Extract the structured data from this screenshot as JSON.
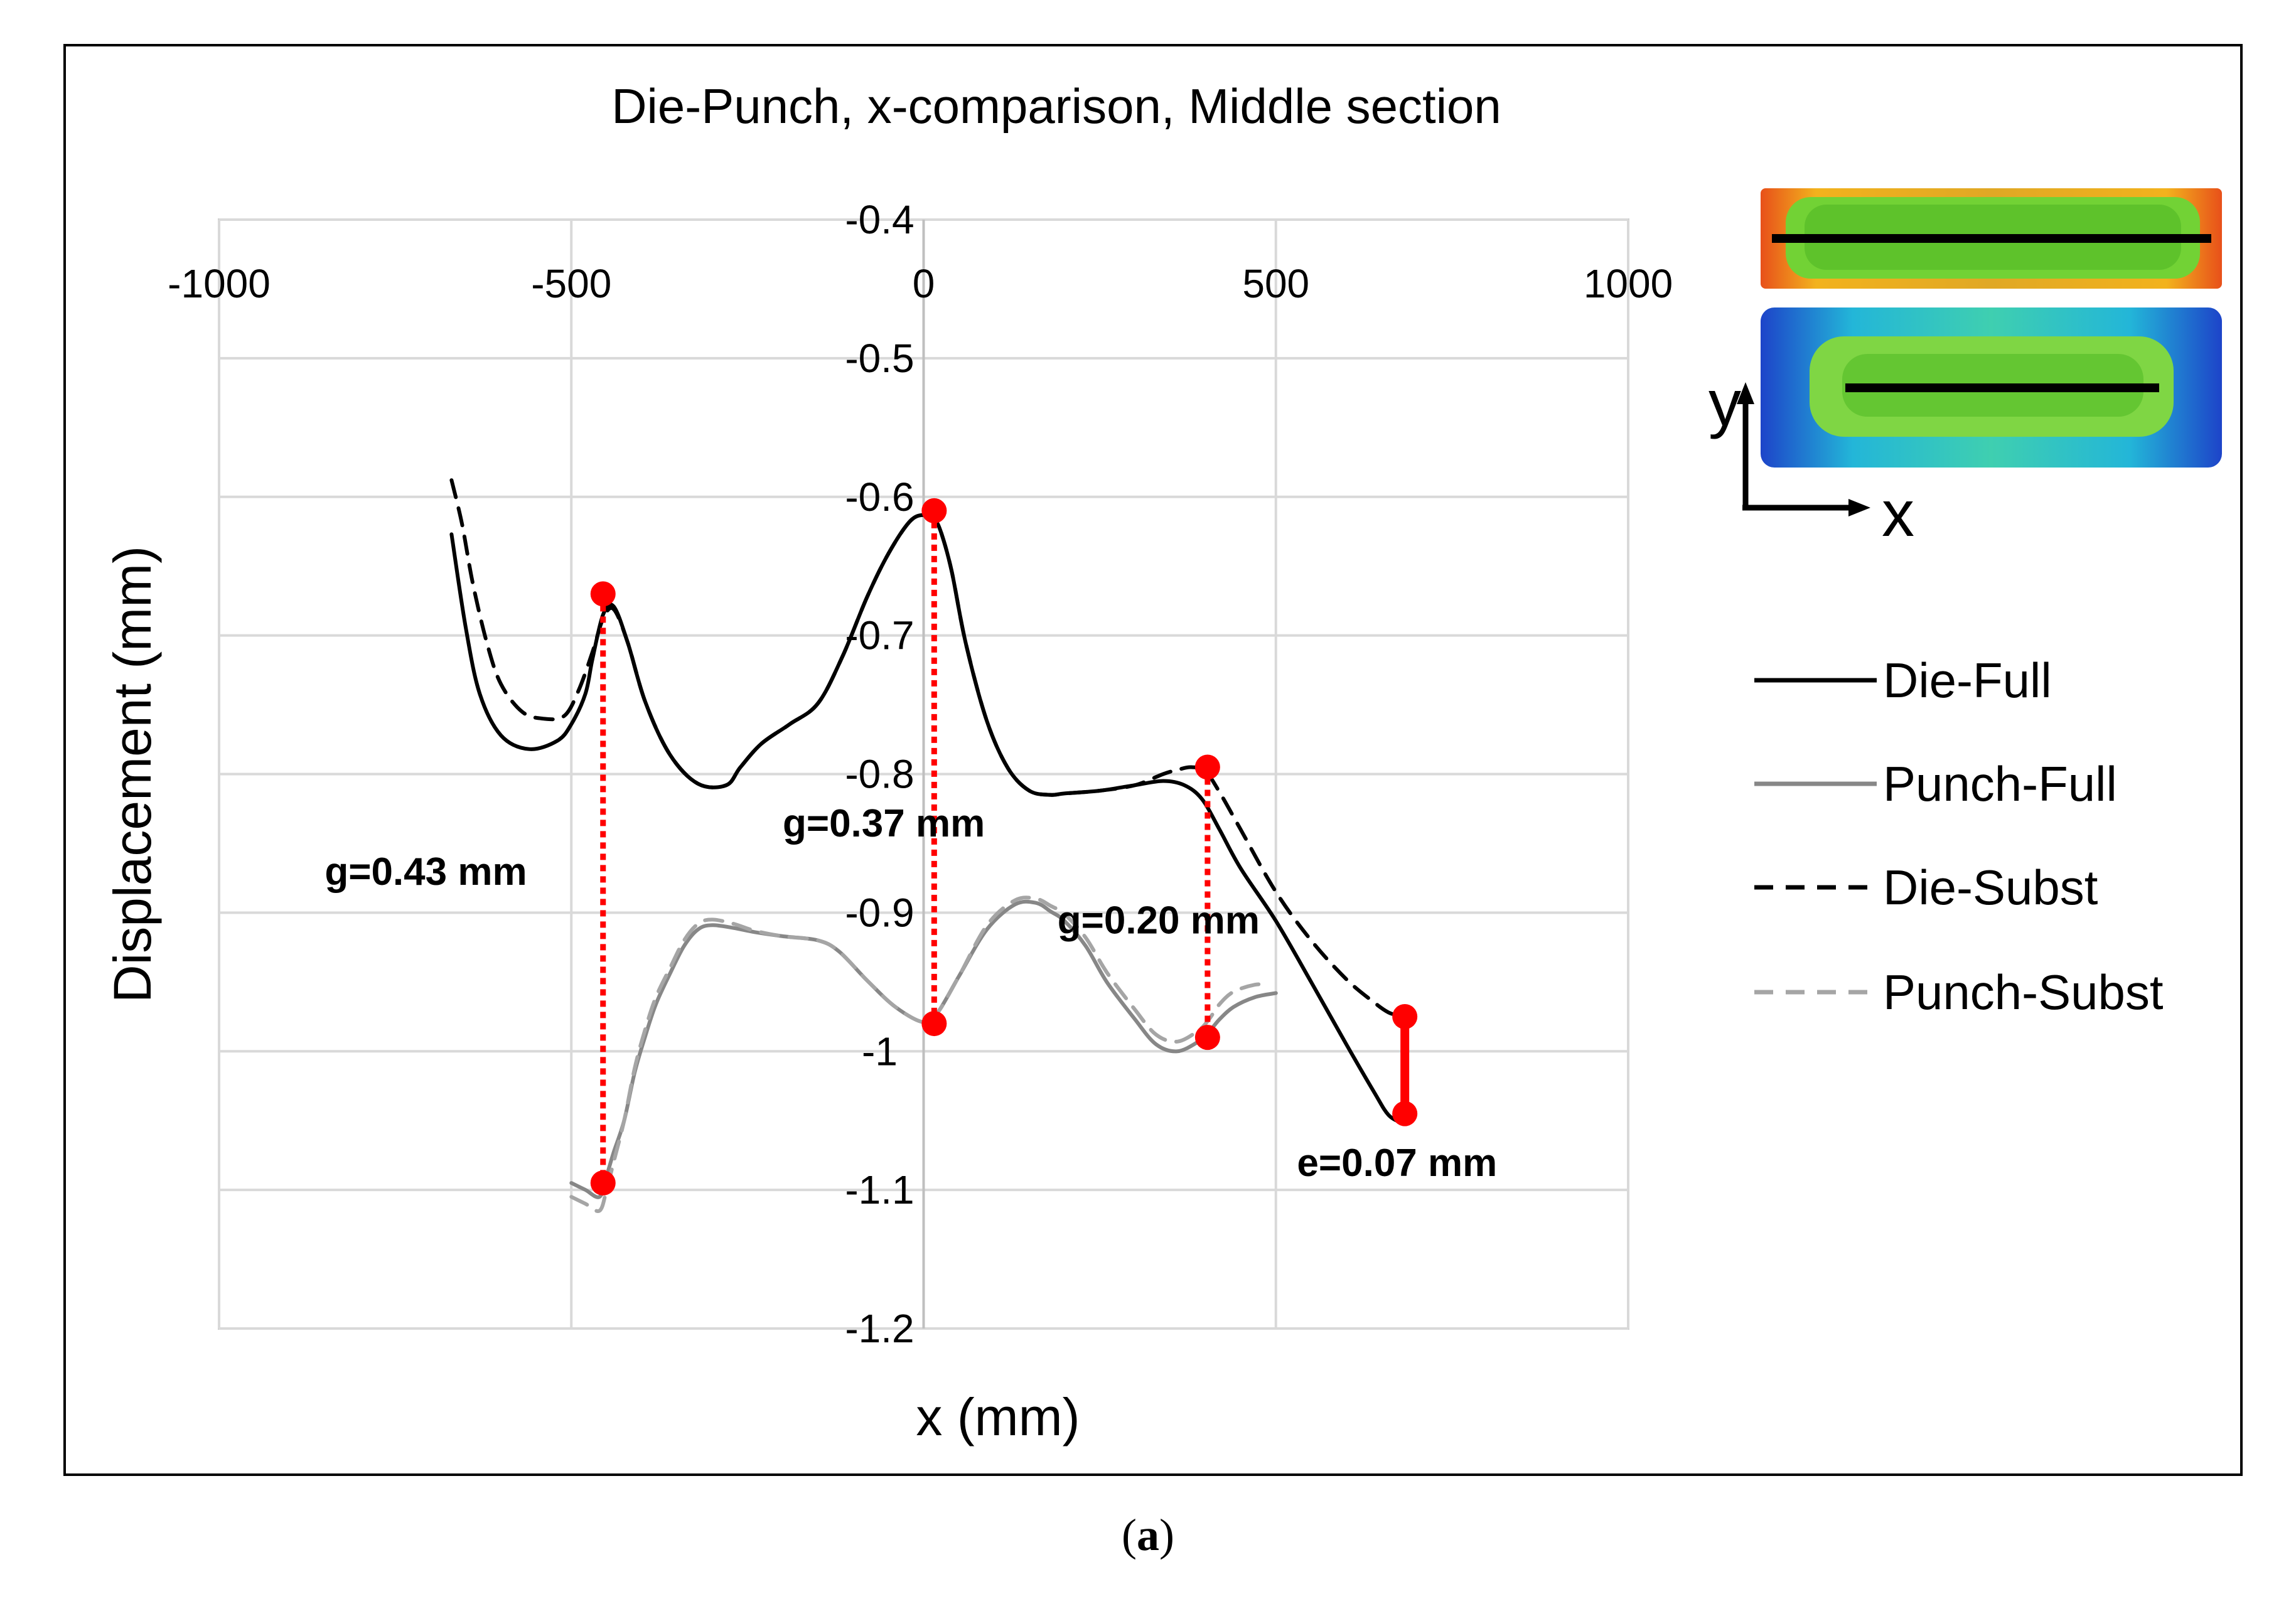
{
  "caption": {
    "open": "(",
    "letter": "a",
    "close": ")"
  },
  "chart_data": {
    "type": "line",
    "title": "Die-Punch, x-comparison, Middle section",
    "xlabel": "x (mm)",
    "ylabel": "Displacement  (mm)",
    "xlim": [
      -1000,
      1000
    ],
    "ylim": [
      -1.2,
      -0.4
    ],
    "x_ticks": [
      -1000,
      -500,
      0,
      500,
      1000
    ],
    "x_tick_labels": [
      "-1000",
      "-500",
      "0",
      "500",
      "1000"
    ],
    "y_ticks": [
      -0.4,
      -0.5,
      -0.6,
      -0.7,
      -0.8,
      -0.9,
      -1.0,
      -1.1,
      -1.2
    ],
    "y_tick_labels": [
      "-0.4",
      "-0.5",
      "-0.6",
      "-0.7",
      "-0.8",
      "-0.9",
      "-1",
      "-1.1",
      "-1.2"
    ],
    "grid": true,
    "legend_position": "right",
    "series": [
      {
        "name": "Die-Full",
        "color": "#000000",
        "dash": "solid",
        "x": [
          -670,
          -650,
          -630,
          -600,
          -560,
          -520,
          -500,
          -480,
          -470,
          -455,
          -440,
          -420,
          -395,
          -360,
          -320,
          -280,
          -260,
          -230,
          -190,
          -150,
          -115,
          -80,
          -50,
          -20,
          0,
          15,
          25,
          40,
          60,
          90,
          120,
          150,
          180,
          200,
          250,
          300,
          340,
          370,
          395,
          420,
          450,
          500,
          550,
          600,
          640,
          660,
          680
        ],
        "y": [
          -0.627,
          -0.694,
          -0.742,
          -0.772,
          -0.782,
          -0.776,
          -0.764,
          -0.742,
          -0.717,
          -0.685,
          -0.679,
          -0.705,
          -0.748,
          -0.786,
          -0.807,
          -0.808,
          -0.795,
          -0.778,
          -0.764,
          -0.749,
          -0.715,
          -0.672,
          -0.641,
          -0.618,
          -0.613,
          -0.616,
          -0.626,
          -0.654,
          -0.706,
          -0.762,
          -0.796,
          -0.812,
          -0.815,
          -0.814,
          -0.812,
          -0.808,
          -0.805,
          -0.808,
          -0.818,
          -0.84,
          -0.868,
          -0.906,
          -0.95,
          -0.995,
          -1.03,
          -1.046,
          -1.052
        ]
      },
      {
        "name": "Punch-Full",
        "color": "#878787",
        "dash": "solid",
        "x": [
          -500,
          -480,
          -460,
          -450,
          -440,
          -425,
          -410,
          -395,
          -380,
          -360,
          -340,
          -320,
          -300,
          -270,
          -240,
          -200,
          -150,
          -120,
          -80,
          -40,
          0,
          20,
          50,
          90,
          130,
          160,
          180,
          200,
          230,
          260,
          300,
          330,
          360,
          390,
          405,
          420,
          440,
          470,
          500
        ],
        "y": [
          -1.095,
          -1.1,
          -1.105,
          -1.09,
          -1.073,
          -1.05,
          -1.015,
          -0.989,
          -0.966,
          -0.944,
          -0.924,
          -0.912,
          -0.909,
          -0.911,
          -0.914,
          -0.917,
          -0.92,
          -0.928,
          -0.949,
          -0.968,
          -0.979,
          -0.972,
          -0.946,
          -0.912,
          -0.894,
          -0.893,
          -0.899,
          -0.906,
          -0.924,
          -0.95,
          -0.977,
          -0.995,
          -1.0,
          -0.993,
          -0.986,
          -0.977,
          -0.968,
          -0.961,
          -0.958
        ]
      },
      {
        "name": "Die-Subst",
        "color": "#000000",
        "dash": "dashed",
        "x": [
          -670,
          -655,
          -640,
          -620,
          -600,
          -570,
          -540,
          -510,
          -490,
          -470,
          -455,
          -440,
          -420,
          -395,
          -360,
          -320,
          -280,
          -260,
          -230,
          -190,
          -150,
          -115,
          -80,
          -50,
          -20,
          0,
          15,
          25,
          40,
          60,
          90,
          120,
          150,
          180,
          200,
          250,
          300,
          340,
          360,
          380,
          400,
          420,
          450,
          500,
          550,
          600,
          640,
          660,
          680
        ],
        "y": [
          -0.588,
          -0.62,
          -0.662,
          -0.705,
          -0.735,
          -0.755,
          -0.76,
          -0.758,
          -0.74,
          -0.712,
          -0.688,
          -0.681,
          -0.705,
          -0.748,
          -0.786,
          -0.807,
          -0.808,
          -0.795,
          -0.778,
          -0.764,
          -0.749,
          -0.715,
          -0.672,
          -0.641,
          -0.618,
          -0.613,
          -0.616,
          -0.626,
          -0.654,
          -0.706,
          -0.762,
          -0.796,
          -0.812,
          -0.815,
          -0.814,
          -0.812,
          -0.808,
          -0.8,
          -0.797,
          -0.795,
          -0.798,
          -0.813,
          -0.84,
          -0.885,
          -0.92,
          -0.948,
          -0.965,
          -0.972,
          -0.975
        ]
      },
      {
        "name": "Punch-Subst",
        "color": "#a5a5a5",
        "dash": "dashed",
        "x": [
          -500,
          -480,
          -460,
          -450,
          -440,
          -425,
          -410,
          -395,
          -380,
          -360,
          -340,
          -320,
          -300,
          -270,
          -240,
          -200,
          -150,
          -120,
          -80,
          -40,
          0,
          20,
          50,
          90,
          130,
          160,
          180,
          200,
          230,
          260,
          300,
          330,
          360,
          390,
          405,
          420,
          440,
          470,
          490
        ],
        "y": [
          -1.105,
          -1.11,
          -1.115,
          -1.1,
          -1.08,
          -1.05,
          -1.012,
          -0.984,
          -0.961,
          -0.94,
          -0.92,
          -0.908,
          -0.905,
          -0.908,
          -0.913,
          -0.917,
          -0.92,
          -0.928,
          -0.949,
          -0.968,
          -0.979,
          -0.972,
          -0.946,
          -0.909,
          -0.891,
          -0.89,
          -0.895,
          -0.901,
          -0.918,
          -0.943,
          -0.97,
          -0.988,
          -0.993,
          -0.985,
          -0.977,
          -0.966,
          -0.957,
          -0.952,
          -0.952
        ]
      }
    ],
    "annotations": [
      {
        "text": "g=0.43 mm",
        "x": -455,
        "y_top": -0.67,
        "y_bottom": -1.095,
        "label_x": -850,
        "label_y": -0.88,
        "style": "dotted"
      },
      {
        "text": "g=0.37 mm",
        "x": 15,
        "y_top": -0.61,
        "y_bottom": -0.98,
        "label_x": -200,
        "label_y": -0.845,
        "style": "dotted"
      },
      {
        "text": "g=0.20 mm",
        "x": 403,
        "y_top": -0.795,
        "y_bottom": -0.99,
        "label_x": 190,
        "label_y": -0.915,
        "style": "dotted"
      },
      {
        "text": "e=0.07 mm",
        "x": 683,
        "y_top": -0.975,
        "y_bottom": -1.045,
        "label_x": 530,
        "label_y": -1.09,
        "style": "solid"
      }
    ],
    "marker_color": "#ff0000",
    "inset": {
      "y_label": "y",
      "x_label": "x"
    }
  }
}
